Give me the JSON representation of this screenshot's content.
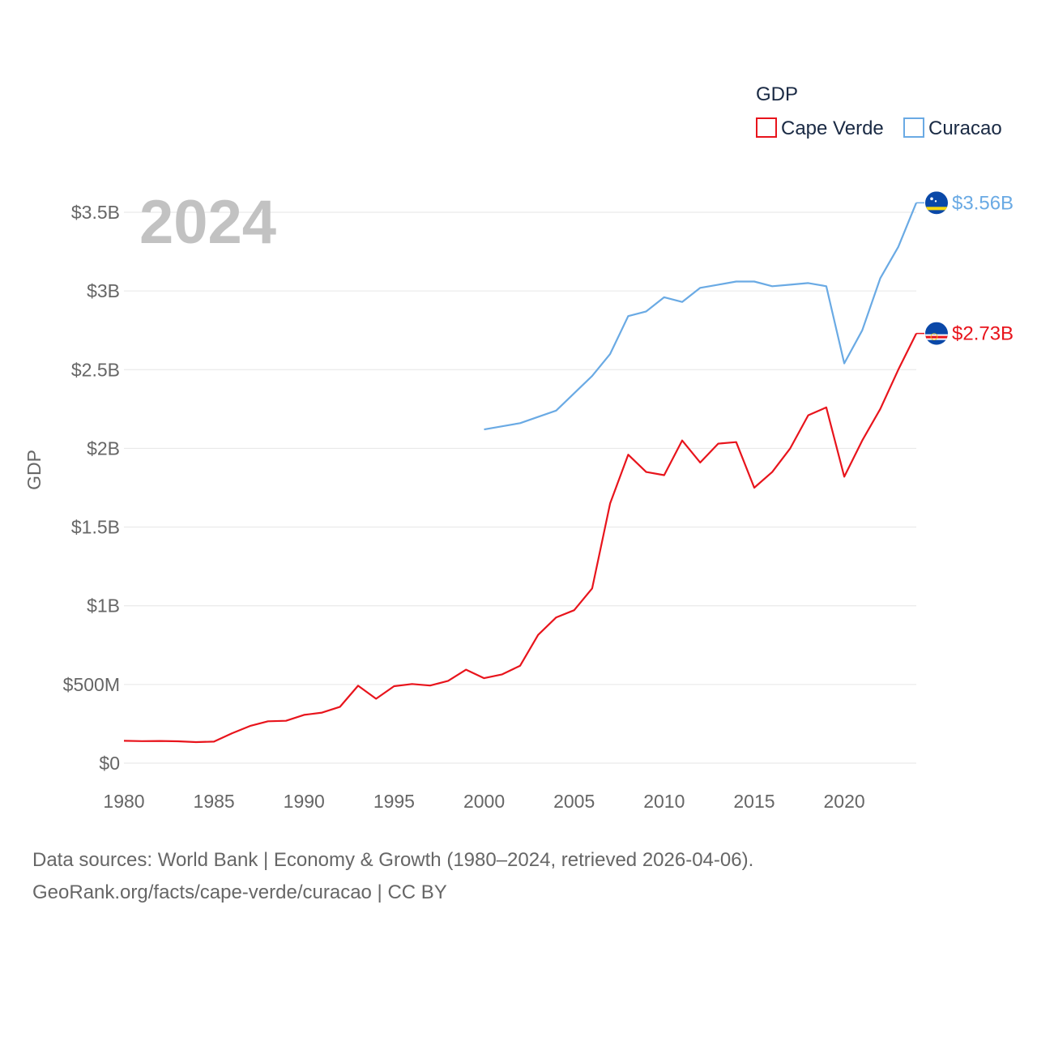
{
  "chart_data": {
    "type": "line",
    "title": "",
    "year_label": "2024",
    "ylabel": "GDP",
    "xlabel": "",
    "xlim": [
      1980,
      2024
    ],
    "ylim": [
      0,
      3500000000
    ],
    "x_ticks": [
      1980,
      1985,
      1990,
      1995,
      2000,
      2005,
      2010,
      2015,
      2020
    ],
    "y_ticks": [
      {
        "value": 0,
        "label": "$0"
      },
      {
        "value": 500000000,
        "label": "$500M"
      },
      {
        "value": 1000000000,
        "label": "$1B"
      },
      {
        "value": 1500000000,
        "label": "$1.5B"
      },
      {
        "value": 2000000000,
        "label": "$2B"
      },
      {
        "value": 2500000000,
        "label": "$2.5B"
      },
      {
        "value": 3000000000,
        "label": "$3B"
      },
      {
        "value": 3500000000,
        "label": "$3.5B"
      }
    ],
    "legend": {
      "title": "GDP",
      "position": "top-right"
    },
    "series": [
      {
        "name": "Cape Verde",
        "color": "#e8141c",
        "flag": "cape-verde-flag-icon",
        "end_label": "$2.73B",
        "x": [
          1980,
          1981,
          1982,
          1983,
          1984,
          1985,
          1986,
          1987,
          1988,
          1989,
          1990,
          1991,
          1992,
          1993,
          1994,
          1995,
          1996,
          1997,
          1998,
          1999,
          2000,
          2001,
          2002,
          2003,
          2004,
          2005,
          2006,
          2007,
          2008,
          2009,
          2010,
          2011,
          2012,
          2013,
          2014,
          2015,
          2016,
          2017,
          2018,
          2019,
          2020,
          2021,
          2022,
          2023,
          2024
        ],
        "values": [
          142000000,
          140000000,
          141000000,
          139000000,
          134000000,
          137000000,
          190000000,
          236000000,
          266000000,
          269000000,
          307000000,
          321000000,
          358000000,
          492000000,
          409000000,
          489000000,
          503000000,
          493000000,
          523000000,
          594000000,
          540000000,
          564000000,
          619000000,
          815000000,
          926000000,
          972000000,
          1110000000,
          1650000000,
          1960000000,
          1850000000,
          1830000000,
          2050000000,
          1910000000,
          2030000000,
          2040000000,
          1750000000,
          1850000000,
          2000000000,
          2210000000,
          2260000000,
          1820000000,
          2050000000,
          2250000000,
          2500000000,
          2730000000
        ]
      },
      {
        "name": "Curacao",
        "color": "#6aaae4",
        "flag": "curacao-flag-icon",
        "end_label": "$3.56B",
        "x": [
          2000,
          2001,
          2002,
          2003,
          2004,
          2005,
          2006,
          2007,
          2008,
          2009,
          2010,
          2011,
          2012,
          2013,
          2014,
          2015,
          2016,
          2017,
          2018,
          2019,
          2020,
          2021,
          2022,
          2023,
          2024
        ],
        "values": [
          2120000000,
          2140000000,
          2160000000,
          2200000000,
          2240000000,
          2350000000,
          2460000000,
          2600000000,
          2840000000,
          2870000000,
          2960000000,
          2930000000,
          3020000000,
          3040000000,
          3060000000,
          3060000000,
          3030000000,
          3040000000,
          3050000000,
          3030000000,
          2540000000,
          2750000000,
          3080000000,
          3280000000,
          3560000000
        ]
      }
    ]
  },
  "footer": {
    "source_line": "Data sources: World Bank | Economy & Growth (1980–2024, retrieved 2026-04-06).",
    "site_line": "GeoRank.org/facts/cape-verde/curacao | CC BY"
  }
}
